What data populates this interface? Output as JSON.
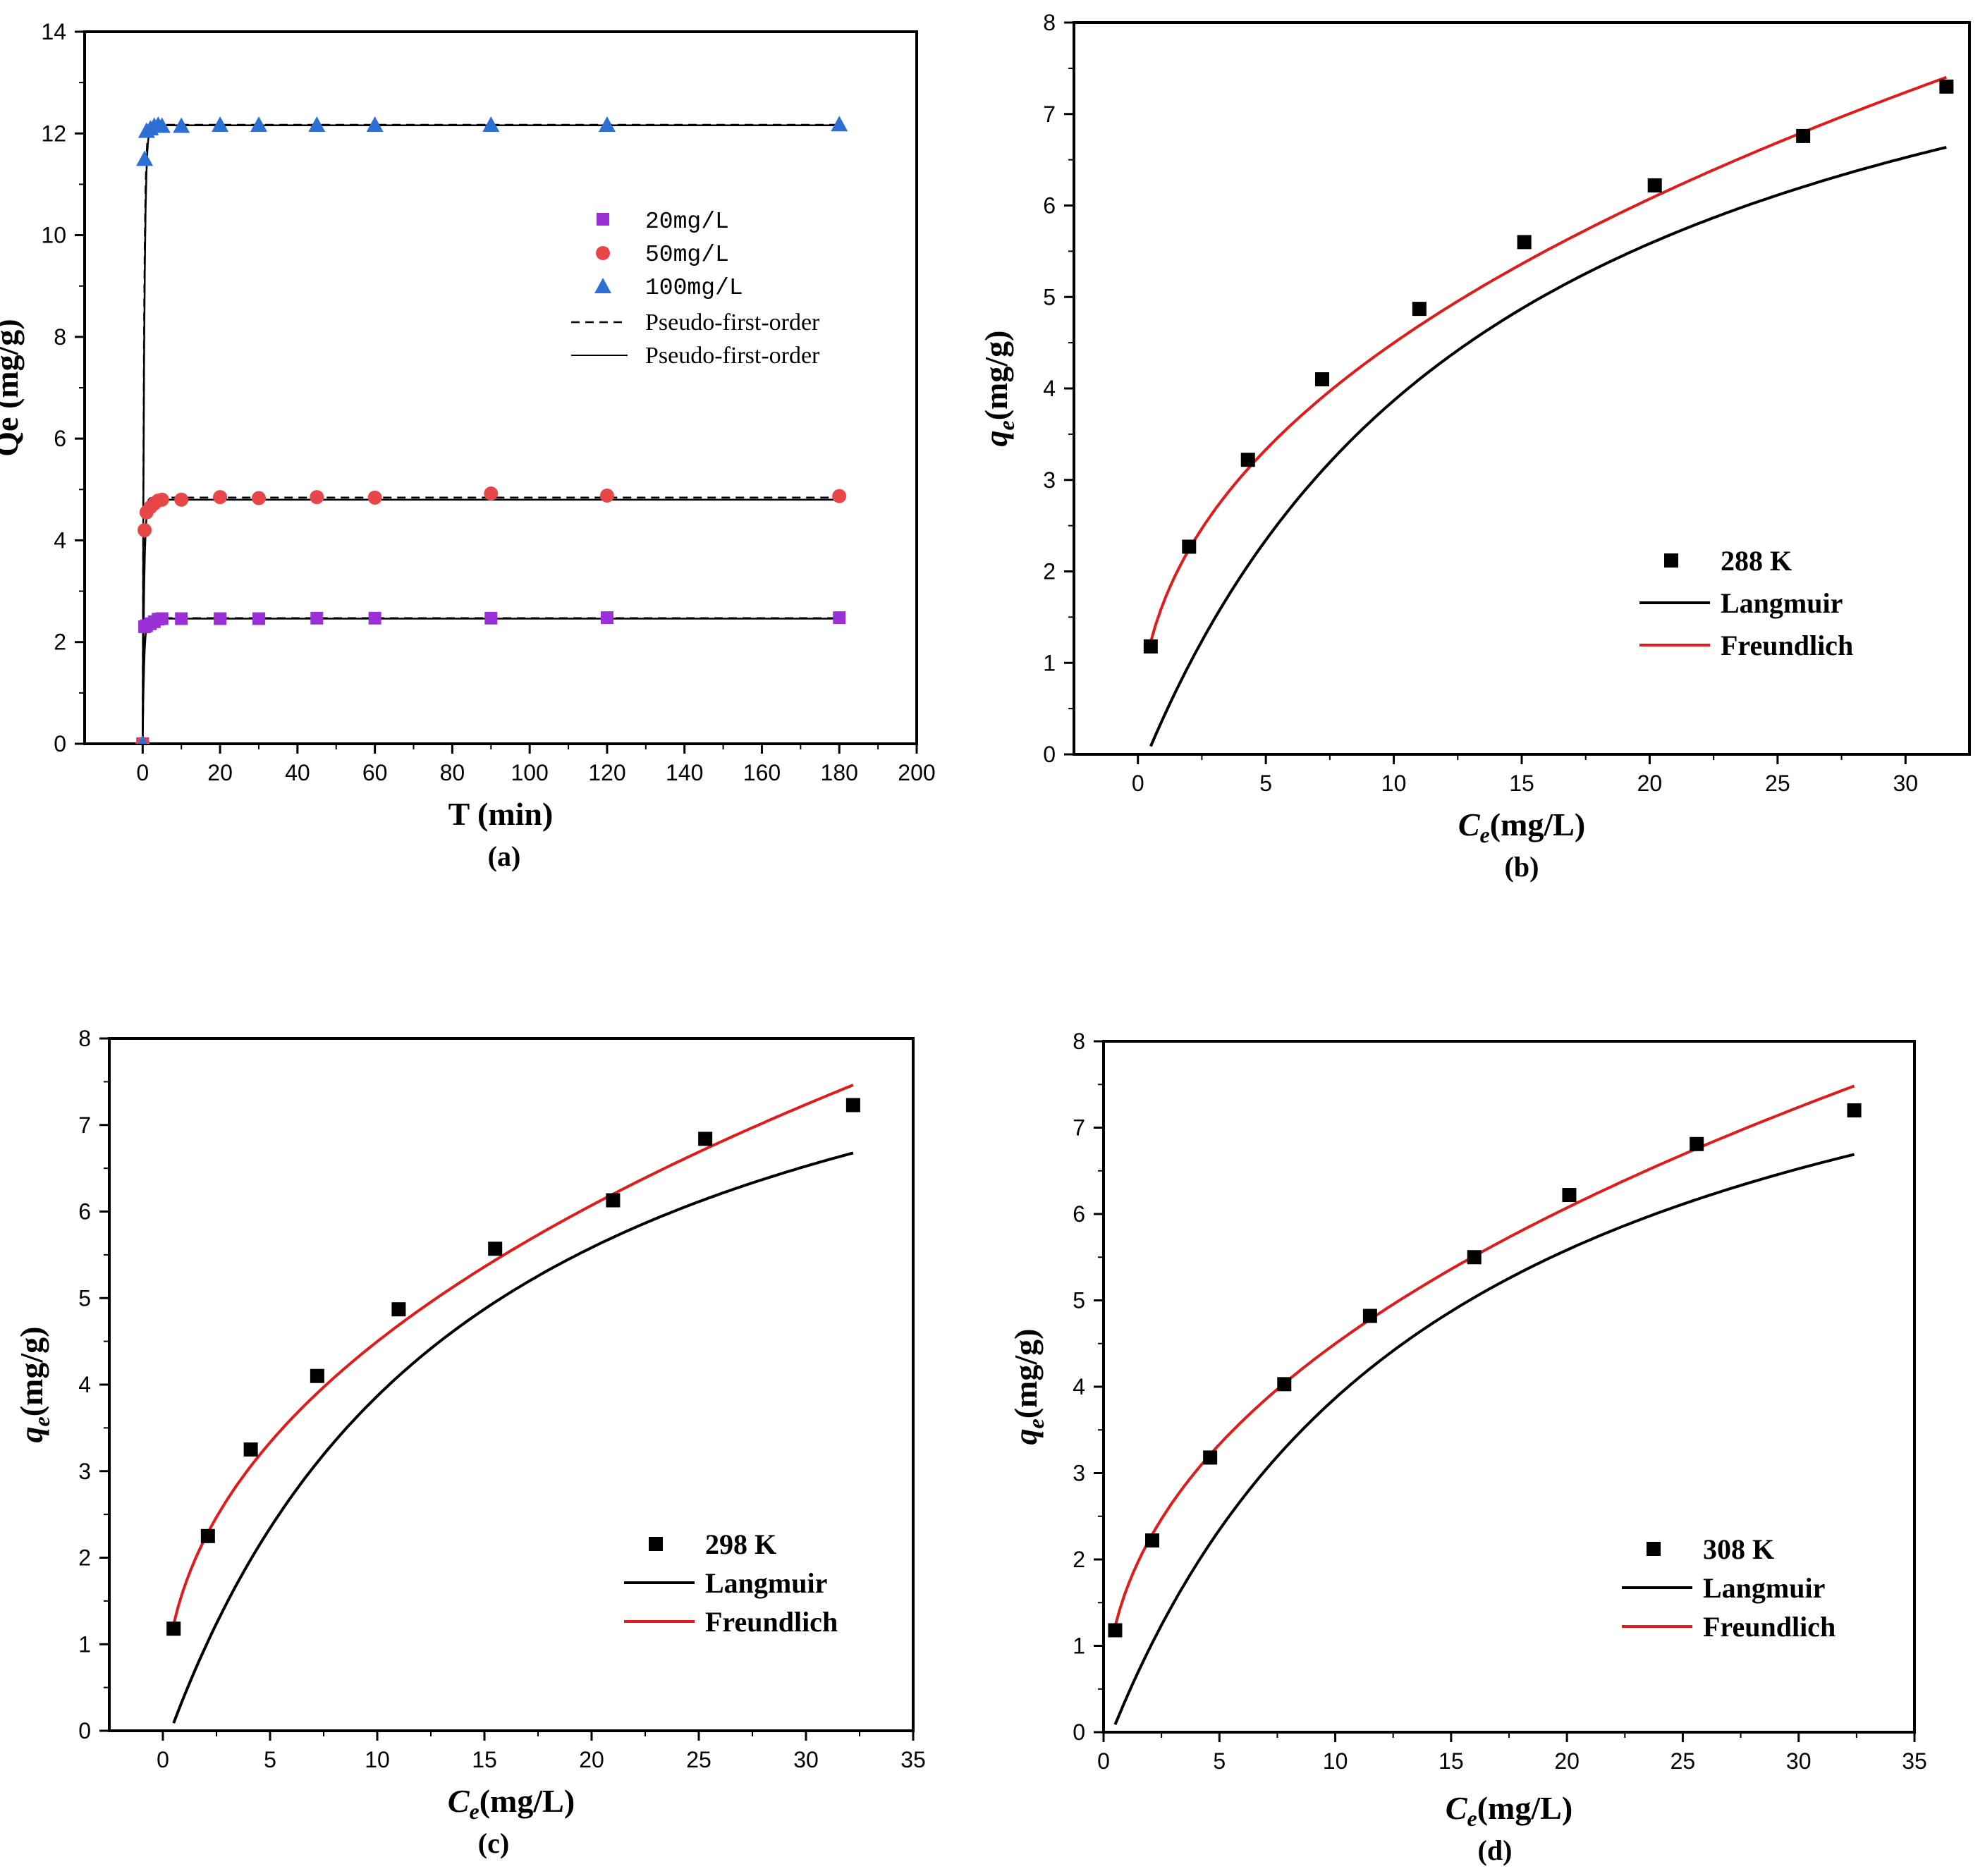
{
  "chart_data": [
    {
      "panel": "a",
      "type": "scatter",
      "caption": "(a)",
      "xlabel": "T (min)",
      "ylabel": "Qe (mg/g)",
      "xlim": [
        -15,
        200
      ],
      "ylim": [
        0,
        14
      ],
      "xticks": [
        0,
        20,
        40,
        60,
        80,
        100,
        120,
        140,
        160,
        180,
        200
      ],
      "yticks": [
        0,
        2,
        4,
        6,
        8,
        10,
        12,
        14
      ],
      "legend_position": "center-right",
      "series": [
        {
          "name": "20mg/L",
          "kind": "points",
          "marker": "square",
          "color": "#9b30d9",
          "x": [
            0,
            0.5,
            1,
            2,
            3,
            4,
            5,
            10,
            20,
            30,
            45,
            60,
            90,
            120,
            180
          ],
          "y": [
            0,
            2.3,
            2.32,
            2.36,
            2.4,
            2.45,
            2.46,
            2.46,
            2.46,
            2.46,
            2.47,
            2.47,
            2.47,
            2.48,
            2.48
          ]
        },
        {
          "name": "50mg/L",
          "kind": "points",
          "marker": "circle",
          "color": "#e8474a",
          "x": [
            0,
            0.5,
            1,
            2,
            3,
            4,
            5,
            10,
            20,
            30,
            45,
            60,
            90,
            120,
            180
          ],
          "y": [
            0,
            4.2,
            4.55,
            4.65,
            4.72,
            4.78,
            4.8,
            4.8,
            4.85,
            4.83,
            4.85,
            4.84,
            4.92,
            4.88,
            4.87
          ]
        },
        {
          "name": "100mg/L",
          "kind": "points",
          "marker": "triangle",
          "color": "#2e6fd6",
          "x": [
            0,
            0.5,
            1,
            2,
            3,
            4,
            5,
            10,
            20,
            30,
            45,
            60,
            90,
            120,
            180
          ],
          "y": [
            0,
            11.5,
            12.05,
            12.1,
            12.15,
            12.17,
            12.15,
            12.15,
            12.17,
            12.17,
            12.17,
            12.17,
            12.17,
            12.17,
            12.18
          ]
        },
        {
          "name": "Pseudo-first-order",
          "kind": "dashed-fit",
          "color": "#000000",
          "qe": [
            2.47,
            4.84,
            12.17
          ]
        },
        {
          "name": "Pseudo-first-order",
          "kind": "solid-fit",
          "color": "#000000",
          "qe": [
            2.46,
            4.8,
            12.16
          ]
        }
      ]
    },
    {
      "panel": "b",
      "type": "scatter",
      "caption": "(b)",
      "xlabel": "C",
      "xlabel_sub": "e",
      "xlabel_unit": "(mg/L)",
      "ylabel": "q",
      "ylabel_sub": "e",
      "ylabel_unit": "(mg/g)",
      "xlim": [
        -2.5,
        32.5
      ],
      "ylim": [
        0,
        8
      ],
      "xticks": [
        0,
        5,
        10,
        15,
        20,
        25,
        30
      ],
      "yticks": [
        0,
        1,
        2,
        3,
        4,
        5,
        6,
        7,
        8
      ],
      "legend_position": "bottom-right",
      "series": [
        {
          "name": "288 K",
          "kind": "points",
          "marker": "square",
          "color": "#000000",
          "x": [
            0.5,
            2.0,
            4.3,
            7.2,
            11.0,
            15.1,
            20.2,
            26.0,
            31.6
          ],
          "y": [
            1.18,
            2.27,
            3.22,
            4.1,
            4.87,
            5.6,
            6.22,
            6.76,
            7.3
          ]
        },
        {
          "name": "Langmuir",
          "kind": "langmuir",
          "color": "#000000",
          "qmax": 10.0,
          "KL": 0.07,
          "offset": 0.0,
          "x_range": [
            0.5,
            31.6
          ]
        },
        {
          "name": "Freundlich",
          "kind": "freundlich",
          "color": "#e01b1b",
          "KF": 1.66,
          "n": 2.31,
          "x_range": [
            0.5,
            31.6
          ]
        }
      ]
    },
    {
      "panel": "c",
      "type": "scatter",
      "caption": "(c)",
      "xlabel": "C",
      "xlabel_sub": "e",
      "xlabel_unit": "(mg/L)",
      "ylabel": "q",
      "ylabel_sub": "e",
      "ylabel_unit": "(mg/g)",
      "xlim": [
        -2.5,
        35
      ],
      "ylim": [
        0,
        8
      ],
      "xticks": [
        0,
        5,
        10,
        15,
        20,
        25,
        30,
        35
      ],
      "yticks": [
        0,
        1,
        2,
        3,
        4,
        5,
        6,
        7,
        8
      ],
      "legend_position": "bottom-right",
      "series": [
        {
          "name": "298 K",
          "kind": "points",
          "marker": "square",
          "color": "#000000",
          "x": [
            0.5,
            2.1,
            4.1,
            7.2,
            11.0,
            15.5,
            21.0,
            25.3,
            32.2
          ],
          "y": [
            1.18,
            2.25,
            3.25,
            4.1,
            4.87,
            5.57,
            6.13,
            6.84,
            7.23
          ]
        },
        {
          "name": "Langmuir",
          "kind": "langmuir",
          "color": "#000000",
          "qmax": 10.0,
          "KL": 0.07,
          "offset": 0.0,
          "x_range": [
            0.5,
            32.2
          ]
        },
        {
          "name": "Freundlich",
          "kind": "freundlich",
          "color": "#e01b1b",
          "KF": 1.66,
          "n": 2.31,
          "x_range": [
            0.5,
            32.2
          ]
        }
      ]
    },
    {
      "panel": "d",
      "type": "scatter",
      "caption": "(d)",
      "xlabel": "C",
      "xlabel_sub": "e",
      "xlabel_unit": "(mg/L)",
      "ylabel": "q",
      "ylabel_sub": "e",
      "ylabel_unit": "(mg/g)",
      "xlim": [
        0,
        35
      ],
      "ylim": [
        0,
        8
      ],
      "xticks": [
        0,
        5,
        10,
        15,
        20,
        25,
        30,
        35
      ],
      "yticks": [
        0,
        1,
        2,
        3,
        4,
        5,
        6,
        7,
        8
      ],
      "legend_position": "bottom-right",
      "series": [
        {
          "name": "308 K",
          "kind": "points",
          "marker": "square",
          "color": "#000000",
          "x": [
            0.5,
            2.1,
            4.6,
            7.8,
            11.5,
            16.0,
            20.1,
            25.6,
            32.4
          ],
          "y": [
            1.18,
            2.22,
            3.18,
            4.03,
            4.82,
            5.5,
            6.22,
            6.81,
            7.2
          ]
        },
        {
          "name": "Langmuir",
          "kind": "langmuir",
          "color": "#000000",
          "qmax": 10.0,
          "KL": 0.07,
          "offset": 0.0,
          "x_range": [
            0.5,
            32.4
          ]
        },
        {
          "name": "Freundlich",
          "kind": "freundlich",
          "color": "#e01b1b",
          "KF": 1.66,
          "n": 2.31,
          "x_range": [
            0.5,
            32.4
          ]
        }
      ]
    }
  ]
}
